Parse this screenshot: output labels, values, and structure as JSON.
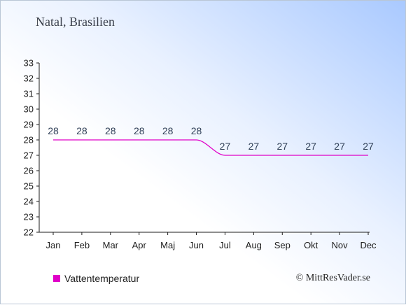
{
  "header": {
    "title": "Natal, Brasilien"
  },
  "legend": {
    "label": "Vattentemperatur"
  },
  "credit": {
    "text": "© MittResVader.se"
  },
  "colors": {
    "series": "#e000c8",
    "axis": "#1e1e1e"
  },
  "chart_data": {
    "type": "line",
    "title": "Natal, Brasilien",
    "xlabel": "",
    "ylabel": "",
    "categories": [
      "Jan",
      "Feb",
      "Mar",
      "Apr",
      "Maj",
      "Jun",
      "Jul",
      "Aug",
      "Sep",
      "Okt",
      "Nov",
      "Dec"
    ],
    "series": [
      {
        "name": "Vattentemperatur",
        "values": [
          28,
          28,
          28,
          28,
          28,
          28,
          27,
          27,
          27,
          27,
          27,
          27
        ]
      }
    ],
    "ylim": [
      22,
      33
    ],
    "yticks": [
      22,
      23,
      24,
      25,
      26,
      27,
      28,
      29,
      30,
      31,
      32,
      33
    ],
    "grid": false,
    "legend_position": "bottom-left"
  }
}
